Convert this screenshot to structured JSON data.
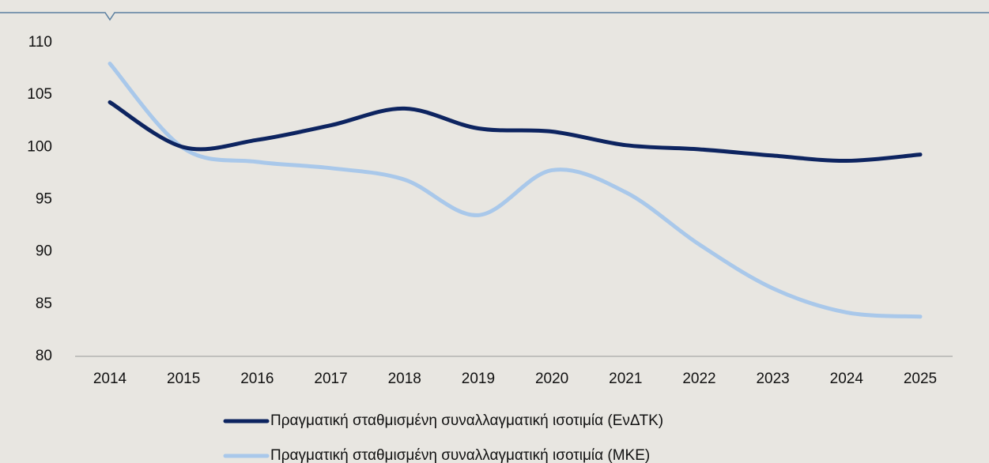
{
  "chart_data": {
    "type": "line",
    "categories": [
      "2014",
      "2015",
      "2016",
      "2017",
      "2018",
      "2019",
      "2020",
      "2021",
      "2022",
      "2023",
      "2024",
      "2025"
    ],
    "series": [
      {
        "name": "Πραγματική σταθμισμένη συναλλαγματική ισοτιμία (ΕνΔΤΚ)",
        "color": "#0d2460",
        "values": [
          104.3,
          100.0,
          100.7,
          102.1,
          103.7,
          101.8,
          101.5,
          100.2,
          99.8,
          99.2,
          98.7,
          99.3
        ]
      },
      {
        "name": "Πραγματική σταθμισμένη συναλλαγματική ισοτιμία (ΜΚΕ)",
        "color": "#a9c8ea",
        "values": [
          108.0,
          99.9,
          98.6,
          98.0,
          96.9,
          93.5,
          97.8,
          95.7,
          90.7,
          86.5,
          84.2,
          83.8
        ]
      }
    ],
    "ylim": [
      80,
      110
    ],
    "yticks": [
      80,
      85,
      90,
      95,
      100,
      105,
      110
    ],
    "grid": false,
    "legend": "bottom"
  }
}
